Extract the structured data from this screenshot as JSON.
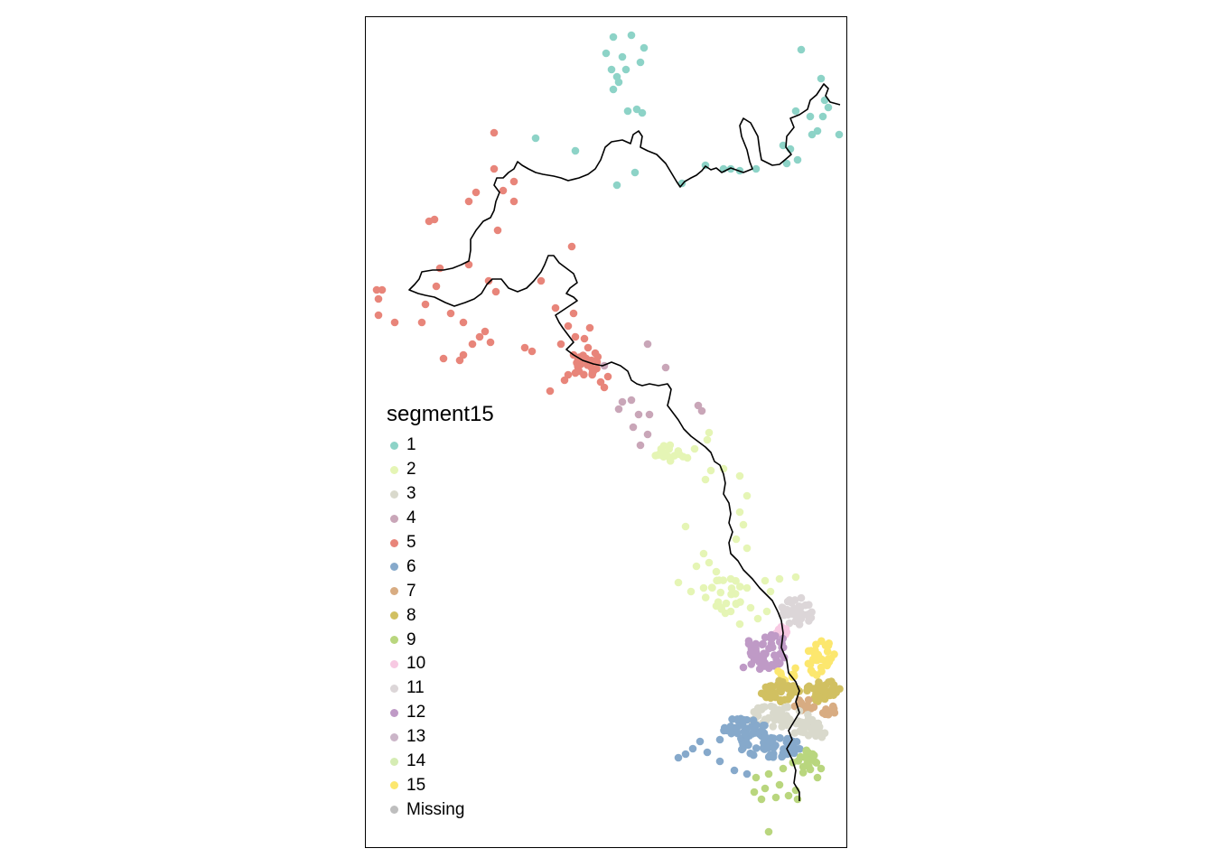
{
  "legend": {
    "title": "segment15",
    "items": [
      {
        "label": "1",
        "color": "#8DD3C7"
      },
      {
        "label": "2",
        "color": "#E5F5B5"
      },
      {
        "label": "3",
        "color": "#D9D9CC"
      },
      {
        "label": "4",
        "color": "#C9A6B8"
      },
      {
        "label": "5",
        "color": "#E8857A"
      },
      {
        "label": "6",
        "color": "#86A9CB"
      },
      {
        "label": "7",
        "color": "#D8AC82"
      },
      {
        "label": "8",
        "color": "#D1C061"
      },
      {
        "label": "9",
        "color": "#B9D67E"
      },
      {
        "label": "10",
        "color": "#F7C9E2"
      },
      {
        "label": "11",
        "color": "#DCD6D8"
      },
      {
        "label": "12",
        "color": "#BF9AC6"
      },
      {
        "label": "13",
        "color": "#CBB5C8"
      },
      {
        "label": "14",
        "color": "#D5ECB3"
      },
      {
        "label": "15",
        "color": "#FCE76E"
      },
      {
        "label": "Missing",
        "color": "#BEBEBE"
      }
    ]
  },
  "map": {
    "boundary_color": "#000000"
  }
}
